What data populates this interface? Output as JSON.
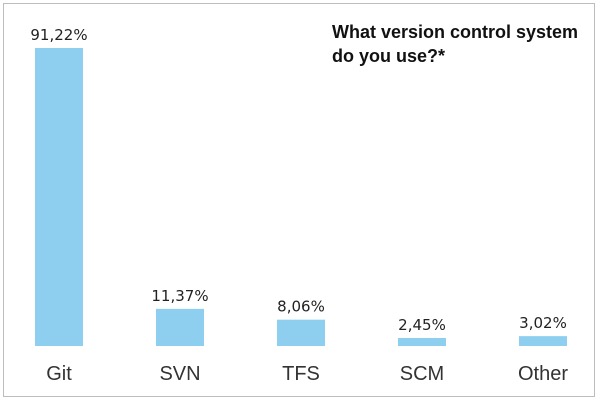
{
  "chart_data": {
    "type": "bar",
    "title": "What version control system do you use?*",
    "categories": [
      "Git",
      "SVN",
      "TFS",
      "SCM",
      "Other"
    ],
    "values": [
      91.22,
      11.37,
      8.06,
      2.45,
      3.02
    ],
    "value_labels": [
      "91,22%",
      "11,37%",
      "8,06%",
      "2,45%",
      "3,02%"
    ],
    "bar_color": "#8ECFEF",
    "ylim": [
      0,
      91.22
    ],
    "grid": false,
    "legend": "none"
  }
}
